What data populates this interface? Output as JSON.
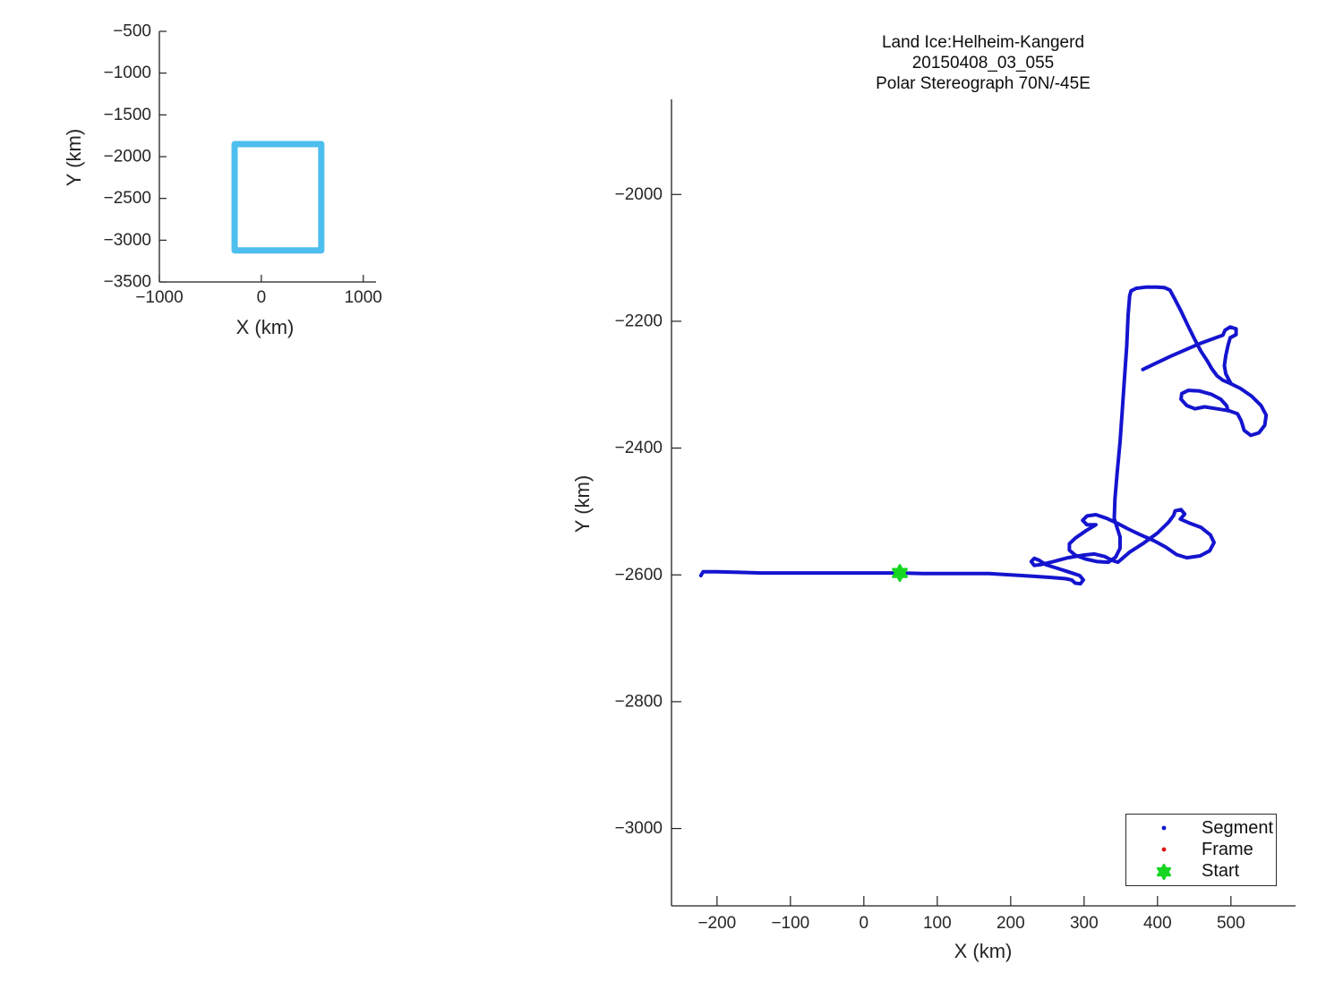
{
  "figure": {
    "title_lines": [
      "Land Ice:Helheim-Kangerd",
      "20150408_03_055",
      "Polar Stereograph 70N/-45E"
    ]
  },
  "colors": {
    "axis": "#1f1f1f",
    "tick_label": "#262626",
    "trajectory_blue": "#1414cf",
    "frame_red": "#dd1414",
    "start_green": "#16d622",
    "inset_box_blue": "#4dbeee",
    "legend_border": "#2b2b2b"
  },
  "chart_data": [
    {
      "id": "overview_inset",
      "type": "line",
      "xlabel": "X (km)",
      "ylabel": "Y (km)",
      "xlim": [
        -1000,
        1125
      ],
      "ylim": [
        -3500,
        -500
      ],
      "xticks": [
        -1000,
        0,
        1000
      ],
      "yticks": [
        -500,
        -1000,
        -1500,
        -2000,
        -2500,
        -3000,
        -3500
      ],
      "grid": false,
      "series": [
        {
          "name": "coverage-box",
          "shape": "rectangle",
          "x0": -262,
          "x1": 588,
          "y0": -3122,
          "y1": -1850,
          "color": "#4dbeee",
          "line_width": 7
        }
      ]
    },
    {
      "id": "flight_track",
      "type": "line",
      "title": "Land Ice:Helheim-Kangerd 20150408_03_055 Polar Stereograph 70N/-45E",
      "xlabel": "X (km)",
      "ylabel": "Y (km)",
      "xlim": [
        -262,
        588
      ],
      "ylim": [
        -3122,
        -1850
      ],
      "xticks": [
        -200,
        -100,
        0,
        100,
        200,
        300,
        400,
        500
      ],
      "yticks": [
        -2000,
        -2200,
        -2400,
        -2600,
        -2800,
        -3000
      ],
      "grid": false,
      "legend_position": "south-east",
      "start_point": {
        "x": 49,
        "y": -2597
      },
      "series": [
        {
          "name": "segment-track",
          "color": "#1414cf",
          "line_width": 4,
          "strokes": [
            [
              [
                -222,
                -2601
              ],
              [
                -219,
                -2595
              ],
              [
                -200,
                -2595
              ],
              [
                -170,
                -2596
              ],
              [
                -140,
                -2597
              ],
              [
                -110,
                -2597
              ],
              [
                -80,
                -2597
              ],
              [
                -50,
                -2597
              ],
              [
                -20,
                -2597
              ],
              [
                10,
                -2597
              ],
              [
                49,
                -2597
              ],
              [
                80,
                -2598
              ],
              [
                110,
                -2598
              ],
              [
                140,
                -2598
              ],
              [
                170,
                -2598
              ],
              [
                200,
                -2600
              ],
              [
                230,
                -2602
              ],
              [
                255,
                -2604
              ],
              [
                275,
                -2606
              ],
              [
                283,
                -2608
              ],
              [
                288,
                -2613
              ],
              [
                295,
                -2614
              ],
              [
                299,
                -2608
              ],
              [
                294,
                -2601
              ],
              [
                278,
                -2595
              ],
              [
                262,
                -2589
              ],
              [
                248,
                -2584
              ],
              [
                239,
                -2577
              ],
              [
                232,
                -2574
              ],
              [
                228,
                -2579
              ],
              [
                232,
                -2585
              ],
              [
                240,
                -2584
              ],
              [
                258,
                -2579
              ],
              [
                278,
                -2573
              ],
              [
                298,
                -2569
              ],
              [
                314,
                -2567
              ],
              [
                328,
                -2571
              ],
              [
                338,
                -2577
              ],
              [
                346,
                -2580
              ],
              [
                362,
                -2564
              ],
              [
                381,
                -2550
              ],
              [
                400,
                -2534
              ],
              [
                415,
                -2517
              ],
              [
                422,
                -2506
              ],
              [
                424,
                -2499
              ],
              [
                432,
                -2497
              ],
              [
                437,
                -2504
              ],
              [
                431,
                -2512
              ],
              [
                443,
                -2518
              ],
              [
                459,
                -2525
              ],
              [
                472,
                -2537
              ],
              [
                477,
                -2549
              ],
              [
                471,
                -2562
              ],
              [
                458,
                -2570
              ],
              [
                440,
                -2573
              ],
              [
                426,
                -2568
              ],
              [
                411,
                -2556
              ],
              [
                395,
                -2546
              ],
              [
                377,
                -2537
              ],
              [
                359,
                -2527
              ],
              [
                346,
                -2519
              ],
              [
                331,
                -2511
              ],
              [
                316,
                -2505
              ],
              [
                304,
                -2507
              ],
              [
                298,
                -2514
              ],
              [
                304,
                -2521
              ],
              [
                316,
                -2521
              ],
              [
                303,
                -2530
              ],
              [
                288,
                -2542
              ],
              [
                280,
                -2551
              ],
              [
                280,
                -2561
              ],
              [
                288,
                -2569
              ],
              [
                302,
                -2575
              ],
              [
                318,
                -2579
              ],
              [
                333,
                -2580
              ],
              [
                343,
                -2572
              ],
              [
                349,
                -2558
              ],
              [
                349,
                -2540
              ],
              [
                344,
                -2522
              ],
              [
                341,
                -2511
              ],
              [
                342,
                -2480
              ],
              [
                345,
                -2440
              ],
              [
                349,
                -2390
              ],
              [
                352,
                -2340
              ],
              [
                355,
                -2290
              ],
              [
                358,
                -2240
              ],
              [
                360,
                -2190
              ],
              [
                362,
                -2160
              ],
              [
                364,
                -2152
              ],
              [
                371,
                -2148
              ],
              [
                385,
                -2146
              ],
              [
                399,
                -2146
              ],
              [
                410,
                -2147
              ],
              [
                417,
                -2151
              ],
              [
                424,
                -2166
              ],
              [
                432,
                -2184
              ],
              [
                441,
                -2206
              ],
              [
                450,
                -2227
              ],
              [
                459,
                -2247
              ],
              [
                468,
                -2263
              ],
              [
                474,
                -2275
              ],
              [
                481,
                -2286
              ],
              [
                489,
                -2293
              ],
              [
                499,
                -2298
              ],
              [
                513,
                -2306
              ],
              [
                528,
                -2318
              ],
              [
                541,
                -2333
              ],
              [
                548,
                -2348
              ],
              [
                546,
                -2364
              ],
              [
                538,
                -2376
              ],
              [
                527,
                -2380
              ],
              [
                518,
                -2372
              ],
              [
                514,
                -2357
              ],
              [
                509,
                -2346
              ],
              [
                497,
                -2341
              ],
              [
                481,
                -2338
              ],
              [
                464,
                -2335
              ],
              [
                451,
                -2338
              ],
              [
                440,
                -2333
              ],
              [
                432,
                -2323
              ],
              [
                433,
                -2314
              ],
              [
                442,
                -2309
              ],
              [
                457,
                -2310
              ],
              [
                473,
                -2315
              ],
              [
                486,
                -2323
              ],
              [
                494,
                -2333
              ],
              [
                496,
                -2341
              ]
            ],
            [
              [
                380,
                -2276
              ],
              [
                398,
                -2266
              ],
              [
                418,
                -2255
              ],
              [
                438,
                -2245
              ],
              [
                458,
                -2235
              ],
              [
                477,
                -2227
              ],
              [
                489,
                -2222
              ],
              [
                492,
                -2214
              ],
              [
                499,
                -2209
              ],
              [
                507,
                -2212
              ],
              [
                507,
                -2221
              ],
              [
                499,
                -2226
              ],
              [
                496,
                -2238
              ],
              [
                493,
                -2254
              ],
              [
                491,
                -2270
              ],
              [
                493,
                -2283
              ],
              [
                497,
                -2292
              ],
              [
                500,
                -2298
              ]
            ]
          ]
        }
      ]
    }
  ],
  "legend": {
    "items": [
      {
        "label": "Segment",
        "marker": "dot",
        "color": "#1414cf"
      },
      {
        "label": "Frame",
        "marker": "dot",
        "color": "#dd1414"
      },
      {
        "label": "Start",
        "marker": "star",
        "color": "#16d622"
      }
    ]
  },
  "labels": {
    "main_xlabel": "X (km)",
    "main_ylabel": "Y (km)",
    "inset_xlabel": "X (km)",
    "inset_ylabel": "Y (km)"
  }
}
